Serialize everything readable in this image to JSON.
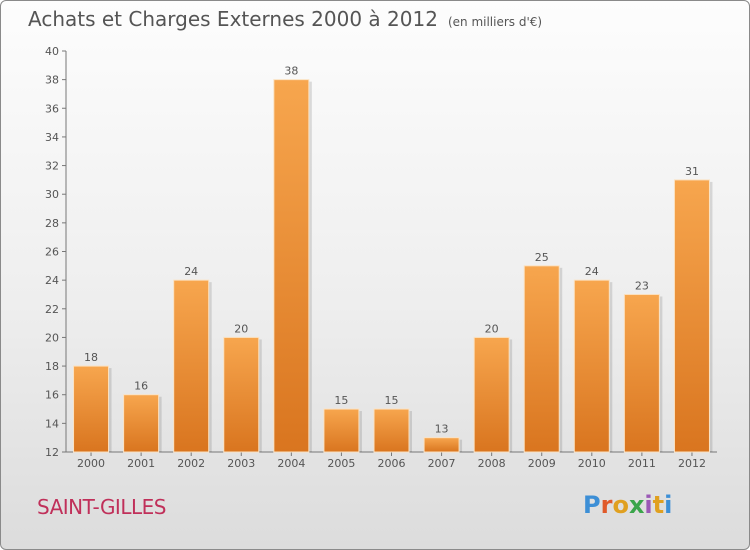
{
  "title": "Achats et Charges Externes 2000 à 2012",
  "subtitle": "(en milliers d'€)",
  "city": "SAINT-GILLES",
  "logo": "Proxiti",
  "logo_colors": [
    "#3d8fd6",
    "#e05a2a",
    "#e0a020",
    "#3aa54a",
    "#9b59b6",
    "#e0a020",
    "#3d8fd6"
  ],
  "colors": {
    "bar_light": "#f7a64e",
    "bar_dark": "#d9751f",
    "text": "#555555",
    "city": "#c0305a"
  },
  "chart_data": {
    "type": "bar",
    "categories": [
      "2000",
      "2001",
      "2002",
      "2003",
      "2004",
      "2005",
      "2006",
      "2007",
      "2008",
      "2009",
      "2010",
      "2011",
      "2012"
    ],
    "values": [
      18,
      16,
      24,
      20,
      38,
      15,
      15,
      13,
      20,
      25,
      24,
      23,
      31
    ],
    "ylim": [
      12,
      40
    ],
    "yticks": [
      12,
      14,
      16,
      18,
      20,
      22,
      24,
      26,
      28,
      30,
      32,
      34,
      36,
      38,
      40
    ],
    "grid": false,
    "xlabel": "",
    "ylabel": ""
  }
}
